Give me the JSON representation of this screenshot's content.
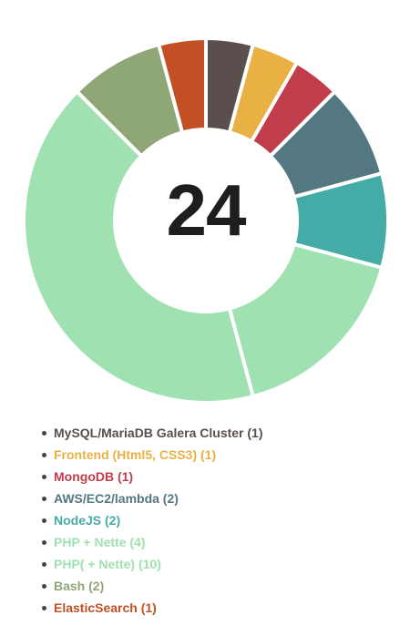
{
  "chart_data": {
    "type": "pie",
    "center_total": "24",
    "series": [
      {
        "name": "MySQL/MariaDB Galera Cluster",
        "value": 1,
        "color": "#5a4f4d",
        "label": "MySQL/MariaDB Galera Cluster (1)"
      },
      {
        "name": "Frontend (Html5, CSS3)",
        "value": 1,
        "color": "#e9b144",
        "label": "Frontend (Html5, CSS3) (1)"
      },
      {
        "name": "MongoDB",
        "value": 1,
        "color": "#c23d4b",
        "label": "MongoDB (1)"
      },
      {
        "name": "AWS/EC2/lambda",
        "value": 2,
        "color": "#537882",
        "label": "AWS/EC2/lambda (2)"
      },
      {
        "name": "NodeJS",
        "value": 2,
        "color": "#44aba7",
        "label": "NodeJS (2)"
      },
      {
        "name": "PHP + Nette",
        "value": 4,
        "color": "#9fe1b1",
        "label": "PHP + Nette (4)"
      },
      {
        "name": "PHP( + Nette)",
        "value": 10,
        "color": "#9fe1b1",
        "label": "PHP( + Nette) (10)"
      },
      {
        "name": "Bash",
        "value": 2,
        "color": "#8fa676",
        "label": "Bash (2)"
      },
      {
        "name": "ElasticSearch",
        "value": 1,
        "color": "#c34f25",
        "label": "ElasticSearch (1)"
      }
    ]
  }
}
